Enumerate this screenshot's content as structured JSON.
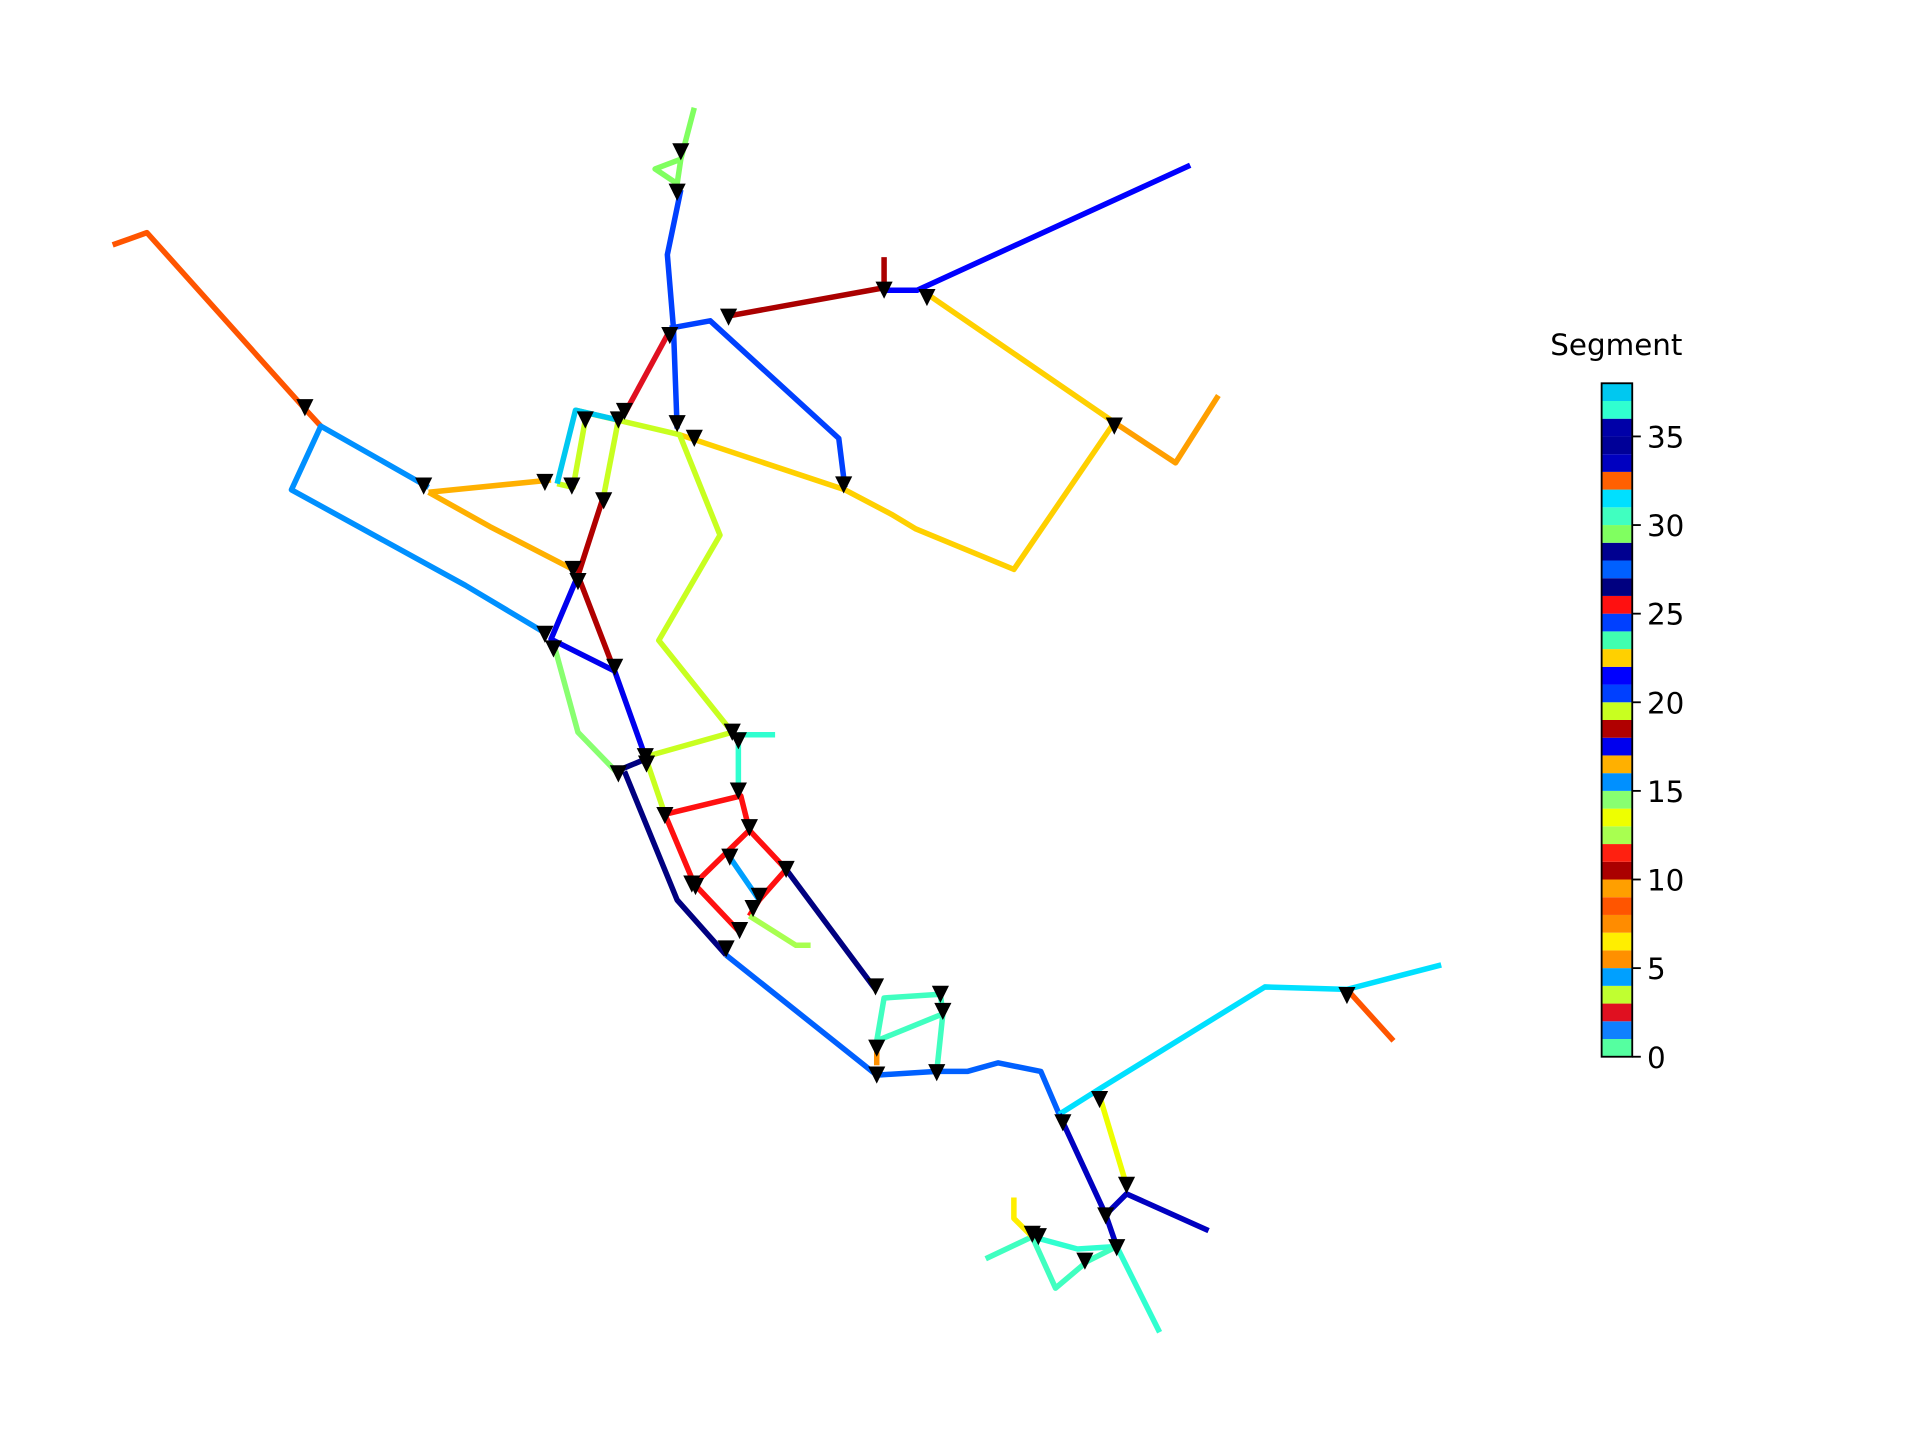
{
  "chart_data": {
    "type": "network",
    "colorbar_label": "Segment",
    "clim": [
      0,
      38
    ],
    "cticks": [
      0,
      5,
      10,
      15,
      20,
      25,
      30,
      35
    ],
    "colormap": [
      "#55ffa0",
      "#1080ff",
      "#e01020",
      "#c0ff30",
      "#00a0ff",
      "#ff9000",
      "#ffee00",
      "#ff8c00",
      "#ff5500",
      "#ff9f00",
      "#aa0000",
      "#ff2010",
      "#a8ff50",
      "#eeff00",
      "#88ff70",
      "#0090ff",
      "#ffb000",
      "#0000ee",
      "#b00000",
      "#c8ff20",
      "#0040ff",
      "#0000ff",
      "#ffd000",
      "#40ffb0",
      "#0040ff",
      "#ff1010",
      "#000080",
      "#0060ff",
      "#000090",
      "#80ff60",
      "#40ffc0",
      "#00e0ff",
      "#ff6000",
      "#0000c0",
      "#000098",
      "#0000a8",
      "#30ffd0",
      "#00c8f0"
    ],
    "xlim": [
      0,
      1568
    ],
    "ylim": [
      1176,
      0
    ],
    "lines": [
      {
        "segment": 8,
        "x": [
          92,
          120,
          250,
          262
        ],
        "y": [
          200,
          190,
          335,
          348
        ]
      },
      {
        "segment": 15,
        "x": [
          350,
          262,
          238,
          380,
          447
        ],
        "y": [
          398,
          348,
          400,
          478,
          518
        ]
      },
      {
        "segment": 16,
        "x": [
          350,
          450
        ],
        "y": [
          402,
          392
        ]
      },
      {
        "segment": 16,
        "x": [
          350,
          400,
          468
        ],
        "y": [
          402,
          430,
          465
        ]
      },
      {
        "segment": 10,
        "x": [
          595,
          722
        ],
        "y": [
          258,
          235
        ]
      },
      {
        "segment": 10,
        "x": [
          722,
          722
        ],
        "y": [
          210,
          235
        ]
      },
      {
        "segment": 21,
        "x": [
          722,
          749,
          972
        ],
        "y": [
          237,
          237,
          135
        ]
      },
      {
        "segment": 22,
        "x": [
          757,
          910,
          828,
          748,
          728,
          690,
          555
        ],
        "y": [
          240,
          345,
          465,
          432,
          420,
          400,
          355
        ]
      },
      {
        "segment": 9,
        "x": [
          910,
          960,
          995
        ],
        "y": [
          345,
          378,
          323
        ]
      },
      {
        "segment": 24,
        "x": [
          547,
          580,
          685,
          690
        ],
        "y": [
          268,
          262,
          358,
          398
        ]
      },
      {
        "segment": 24,
        "x": [
          556,
          545,
          550,
          553
        ],
        "y": [
          155,
          208,
          268,
          350
        ]
      },
      {
        "segment": 29,
        "x": [
          567,
          556,
          535,
          553,
          556
        ],
        "y": [
          88,
          130,
          138,
          150,
          130
        ]
      },
      {
        "segment": 19,
        "x": [
          470,
          555,
          588,
          538,
          598
        ],
        "y": [
          335,
          355,
          437,
          523,
          598
        ]
      },
      {
        "segment": 19,
        "x": [
          505,
          493
        ],
        "y": [
          343,
          405
        ]
      },
      {
        "segment": 19,
        "x": [
          478,
          468,
          455
        ],
        "y": [
          343,
          398,
          395
        ]
      },
      {
        "segment": 37,
        "x": [
          455,
          470,
          505
        ],
        "y": [
          395,
          335,
          343
        ]
      },
      {
        "segment": 2,
        "x": [
          547,
          510
        ],
        "y": [
          270,
          338
        ]
      },
      {
        "segment": 18,
        "x": [
          493,
          472,
          502
        ],
        "y": [
          405,
          470,
          548
        ]
      },
      {
        "segment": 17,
        "x": [
          472,
          450,
          502,
          527
        ],
        "y": [
          470,
          522,
          548,
          618
        ]
      },
      {
        "segment": 14,
        "x": [
          452,
          472,
          503
        ],
        "y": [
          525,
          598,
          630
        ]
      },
      {
        "segment": 26,
        "x": [
          503,
          527
        ],
        "y": [
          630,
          620
        ]
      },
      {
        "segment": 26,
        "x": [
          510,
          553,
          593
        ],
        "y": [
          630,
          735,
          780
        ]
      },
      {
        "segment": 26,
        "x": [
          642,
          715
        ],
        "y": [
          710,
          808
        ]
      },
      {
        "segment": 19,
        "x": [
          527,
          598
        ],
        "y": [
          618,
          598
        ]
      },
      {
        "segment": 19,
        "x": [
          527,
          543
        ],
        "y": [
          618,
          665
        ]
      },
      {
        "segment": 36,
        "x": [
          603,
          603
        ],
        "y": [
          600,
          650
        ]
      },
      {
        "segment": 36,
        "x": [
          603,
          633
        ],
        "y": [
          600,
          600
        ]
      },
      {
        "segment": 25,
        "x": [
          543,
          605,
          612,
          642,
          620,
          612
        ],
        "y": [
          665,
          650,
          678,
          710,
          735,
          748
        ]
      },
      {
        "segment": 25,
        "x": [
          543,
          567,
          612
        ],
        "y": [
          665,
          722,
          678
        ]
      },
      {
        "segment": 25,
        "x": [
          567,
          603
        ],
        "y": [
          722,
          760
        ]
      },
      {
        "segment": 4,
        "x": [
          596,
          620
        ],
        "y": [
          700,
          735
        ]
      },
      {
        "segment": 12,
        "x": [
          612,
          650,
          662
        ],
        "y": [
          748,
          772,
          772
        ]
      },
      {
        "segment": 27,
        "x": [
          593,
          716,
          765,
          790,
          815,
          850,
          865
        ],
        "y": [
          780,
          878,
          875,
          875,
          868,
          875,
          910
        ]
      },
      {
        "segment": 30,
        "x": [
          716,
          722,
          768,
          770,
          765
        ],
        "y": [
          850,
          815,
          812,
          828,
          875
        ]
      },
      {
        "segment": 30,
        "x": [
          716,
          770
        ],
        "y": [
          850,
          828
        ]
      },
      {
        "segment": 5,
        "x": [
          716,
          716
        ],
        "y": [
          850,
          870
        ]
      },
      {
        "segment": 31,
        "x": [
          865,
          900,
          1033,
          1100,
          1177
        ],
        "y": [
          910,
          888,
          806,
          808,
          788
        ]
      },
      {
        "segment": 8,
        "x": [
          1100,
          1138
        ],
        "y": [
          808,
          850
        ]
      },
      {
        "segment": 13,
        "x": [
          898,
          920
        ],
        "y": [
          895,
          968
        ]
      },
      {
        "segment": 33,
        "x": [
          865,
          903,
          920,
          987
        ],
        "y": [
          910,
          992,
          975,
          1005
        ]
      },
      {
        "segment": 33,
        "x": [
          903,
          912
        ],
        "y": [
          992,
          1018
        ]
      },
      {
        "segment": 36,
        "x": [
          843,
          880,
          912,
          947
        ],
        "y": [
          1010,
          1020,
          1018,
          1088
        ]
      },
      {
        "segment": 30,
        "x": [
          805,
          843,
          862,
          888,
          912
        ],
        "y": [
          1028,
          1010,
          1052,
          1030,
          1018
        ]
      },
      {
        "segment": 6,
        "x": [
          828,
          828,
          843
        ],
        "y": [
          978,
          995,
          1010
        ]
      }
    ],
    "markers": {
      "x": [
        556,
        553,
        249,
        346,
        445,
        467,
        478,
        505,
        510,
        547,
        553,
        567,
        595,
        722,
        757,
        910,
        689,
        493,
        468,
        472,
        445,
        452,
        502,
        527,
        528,
        505,
        598,
        603,
        603,
        543,
        612,
        596,
        642,
        568,
        565,
        620,
        615,
        604,
        593,
        715,
        768,
        770,
        716,
        716,
        765,
        898,
        868,
        920,
        903,
        912,
        886,
        843,
        848,
        1100
      ],
      "y": [
        124,
        157,
        333,
        397,
        394,
        397,
        343,
        343,
        336,
        274,
        346,
        358,
        259,
        237,
        243,
        348,
        396,
        409,
        465,
        475,
        518,
        530,
        545,
        618,
        624,
        632,
        598,
        605,
        646,
        666,
        676,
        700,
        710,
        724,
        722,
        732,
        742,
        760,
        775,
        806,
        812,
        826,
        856,
        878,
        876,
        898,
        917,
        968,
        993,
        1019,
        1030,
        1008,
        1010,
        813
      ]
    }
  }
}
